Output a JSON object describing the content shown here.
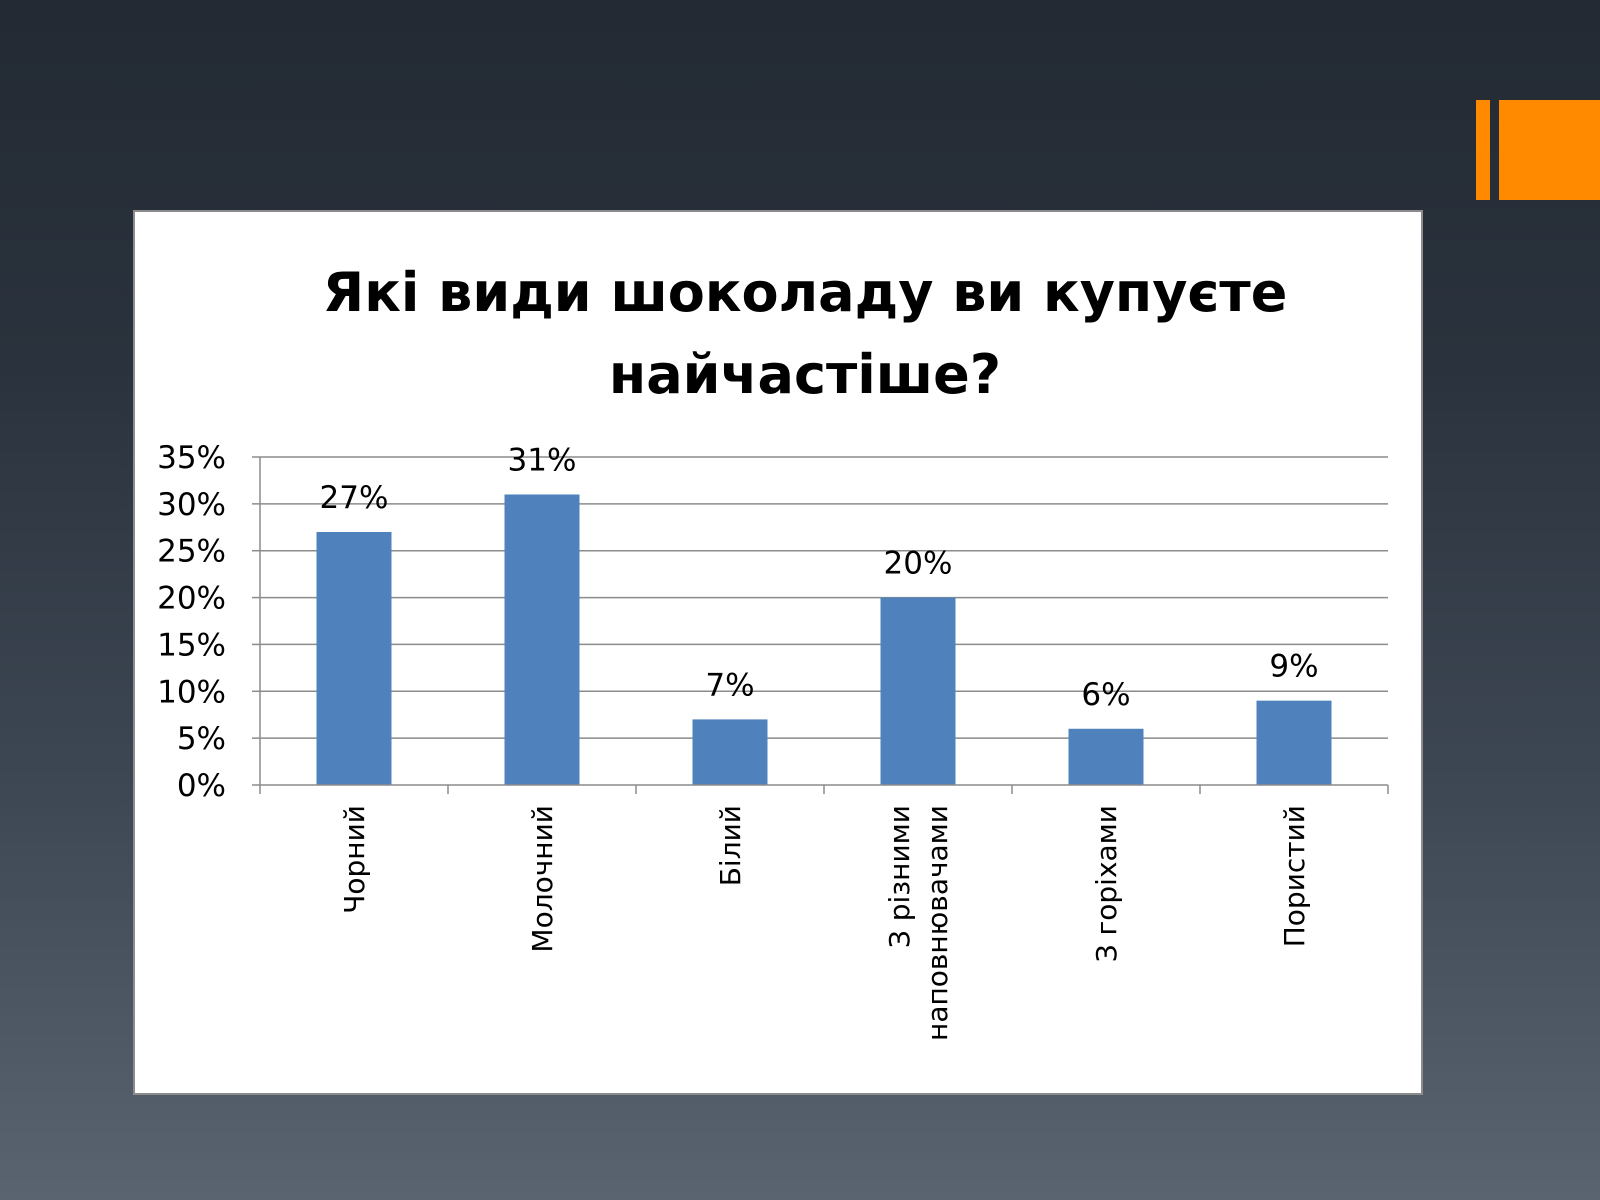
{
  "slide": {
    "background_top": "#232a33",
    "background_bottom": "#5a6470",
    "accent_color": "#ff8a00"
  },
  "chart_data": {
    "type": "bar",
    "title": "Які види шоколаду ви купуєте найчастіше?",
    "title_lines": [
      "Які види шоколаду ви купуєте",
      "найчастіше?"
    ],
    "categories": [
      "Чорний",
      "Молочний",
      "Білий",
      "З різними наповнювачами",
      "З горіхами",
      "Пористий"
    ],
    "category_label_lines": [
      [
        "Чорний"
      ],
      [
        "Молочний"
      ],
      [
        "Білий"
      ],
      [
        "З різними",
        "наповнювачами"
      ],
      [
        "З горіхами"
      ],
      [
        "Пористий"
      ]
    ],
    "values": [
      27,
      31,
      7,
      20,
      6,
      9
    ],
    "value_labels": [
      "27%",
      "31%",
      "7%",
      "20%",
      "6%",
      "9%"
    ],
    "yticks": [
      0,
      5,
      10,
      15,
      20,
      25,
      30,
      35
    ],
    "ytick_labels": [
      "0%",
      "5%",
      "10%",
      "15%",
      "20%",
      "25%",
      "30%",
      "35%"
    ],
    "ylim": [
      0,
      35
    ],
    "xlabel": "",
    "ylabel": "",
    "grid": true,
    "legend": "none",
    "bar_color": "#4f81bd",
    "grid_color": "#8c8c8c"
  }
}
